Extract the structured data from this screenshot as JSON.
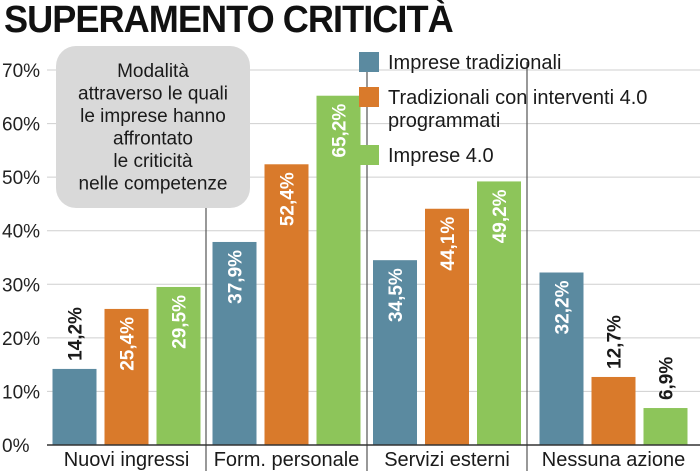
{
  "chart_data": {
    "type": "bar",
    "title": "SUPERAMENTO CRITICITÀ",
    "annotation": [
      "Modalità",
      "attraverso le quali",
      "le imprese hanno",
      "affrontato",
      "le criticità",
      "nelle competenze"
    ],
    "categories": [
      "Nuovi ingressi",
      "Form. personale",
      "Servizi esterni",
      "Nessuna azione"
    ],
    "series": [
      {
        "name": "Imprese tradizionali",
        "values": [
          14.2,
          37.9,
          34.5,
          32.2
        ],
        "labels": [
          "14,2%",
          "37,9%",
          "34,5%",
          "32,2%"
        ],
        "color": "#5b8aa0"
      },
      {
        "name": [
          "Tradizionali con interventi 4.0",
          "programmati"
        ],
        "values": [
          25.4,
          52.4,
          44.1,
          12.7
        ],
        "labels": [
          "25,4%",
          "52,4%",
          "44,1%",
          "12,7%"
        ],
        "color": "#d97a2b"
      },
      {
        "name": "Imprese 4.0",
        "values": [
          29.5,
          65.2,
          49.2,
          6.9
        ],
        "labels": [
          "29,5%",
          "65,2%",
          "49,2%",
          "6,9%"
        ],
        "color": "#8dc55a"
      }
    ],
    "yticks": [
      "0%",
      "10%",
      "20%",
      "30%",
      "40%",
      "50%",
      "60%",
      "70%"
    ],
    "ylim": [
      0,
      70
    ],
    "grid": true,
    "legend_position": "top-right"
  }
}
